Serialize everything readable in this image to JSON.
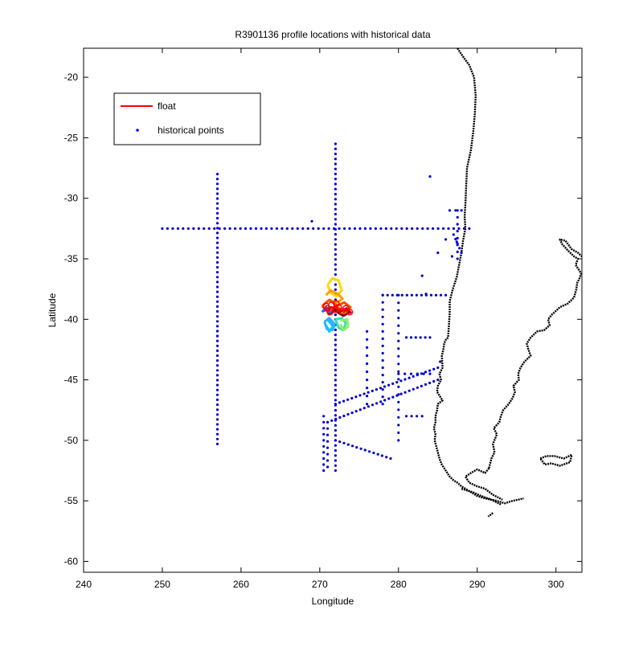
{
  "chart_data": {
    "type": "scatter",
    "title": "R3901136 profile locations with historical data",
    "xlabel": "Longitude",
    "ylabel": "Latitude",
    "xlim": [
      240,
      303.3
    ],
    "ylim": [
      -60.9,
      -17.6
    ],
    "xticks": [
      240,
      250,
      260,
      270,
      280,
      290,
      300
    ],
    "yticks": [
      -20,
      -25,
      -30,
      -35,
      -40,
      -45,
      -50,
      -55,
      -60
    ],
    "legend": {
      "placement": "top-left",
      "entries": [
        {
          "label": "float",
          "color": "#ff0000",
          "marker": "line"
        },
        {
          "label": "historical points",
          "color": "#0000ff",
          "marker": "point"
        }
      ]
    },
    "series": [
      {
        "name": "historical points",
        "color": "#0000cc",
        "segments": [
          {
            "from": [
              250,
              -32.5
            ],
            "to": [
              289,
              -32.5
            ],
            "n": 60
          },
          {
            "from": [
              257,
              -28
            ],
            "to": [
              257,
              -50.3
            ],
            "n": 56
          },
          {
            "from": [
              272,
              -25.5
            ],
            "to": [
              272,
              -52.5
            ],
            "n": 66
          },
          {
            "from": [
              278,
              -38
            ],
            "to": [
              286,
              -38
            ],
            "n": 14
          },
          {
            "from": [
              278,
              -38
            ],
            "to": [
              278,
              -47
            ],
            "n": 16
          },
          {
            "from": [
              276,
              -41
            ],
            "to": [
              276,
              -47
            ],
            "n": 10
          },
          {
            "from": [
              280,
              -38
            ],
            "to": [
              280,
              -50
            ],
            "n": 20
          },
          {
            "from": [
              281,
              -41.5
            ],
            "to": [
              284,
              -41.5
            ],
            "n": 6
          },
          {
            "from": [
              280,
              -44.5
            ],
            "to": [
              284,
              -44.5
            ],
            "n": 6
          },
          {
            "from": [
              281,
              -48
            ],
            "to": [
              283,
              -48
            ],
            "n": 4
          },
          {
            "from": [
              270.5,
              -48
            ],
            "to": [
              270.5,
              -52.5
            ],
            "n": 10
          },
          {
            "from": [
              271,
              -48.5
            ],
            "to": [
              271,
              -52.2
            ],
            "n": 8
          },
          {
            "from": [
              271,
              -48.5
            ],
            "to": [
              285,
              -45
            ],
            "n": 28
          },
          {
            "from": [
              272,
              -47
            ],
            "to": [
              285,
              -44
            ],
            "n": 26
          },
          {
            "from": [
              272,
              -50
            ],
            "to": [
              279,
              -51.5
            ],
            "n": 14
          },
          {
            "from": [
              287.5,
              -31
            ],
            "to": [
              287.5,
              -35
            ],
            "n": 8
          },
          {
            "from": [
              286.5,
              -31
            ],
            "to": [
              288,
              -31
            ],
            "n": 3
          },
          {
            "from": [
              287,
              -33
            ],
            "to": [
              288,
              -34.5
            ],
            "n": 5
          }
        ],
        "points": [
          [
            269,
            -31.9
          ],
          [
            284,
            -28.2
          ],
          [
            283,
            -36.4
          ],
          [
            285,
            -34.5
          ],
          [
            283.5,
            -37.9
          ],
          [
            286,
            -33.4
          ],
          [
            287.4,
            -33.6
          ],
          [
            286.8,
            -34.8
          ],
          [
            285.3,
            -43.5
          ]
        ]
      },
      {
        "name": "float",
        "color": "#ff0000",
        "points": [
          [
            271,
            -39.1
          ],
          [
            271.5,
            -38.8
          ],
          [
            272,
            -39.2
          ],
          [
            272.4,
            -39.0
          ],
          [
            272.8,
            -39.3
          ],
          [
            273.3,
            -39.1
          ],
          [
            273.8,
            -39.4
          ],
          [
            271.3,
            -39.4
          ],
          [
            270.8,
            -38.9
          ],
          [
            272.1,
            -38.7
          ]
        ],
        "traces": [
          {
            "color": "#ffd800",
            "points": [
              [
                271,
                -37.2
              ],
              [
                271.6,
                -36.6
              ],
              [
                272.4,
                -36.8
              ],
              [
                272.8,
                -37.6
              ],
              [
                272.1,
                -38.1
              ],
              [
                271.4,
                -37.8
              ],
              [
                271,
                -37.2
              ]
            ]
          },
          {
            "color": "#ffa000",
            "points": [
              [
                270.8,
                -38
              ],
              [
                271.4,
                -37.6
              ],
              [
                272.3,
                -37.9
              ],
              [
                272.9,
                -38.3
              ],
              [
                272.2,
                -38.6
              ],
              [
                271.2,
                -38.4
              ]
            ]
          },
          {
            "color": "#ff5000",
            "points": [
              [
                270.3,
                -38.9
              ],
              [
                271.2,
                -38.4
              ],
              [
                272.2,
                -38.9
              ],
              [
                273.1,
                -38.6
              ],
              [
                273.9,
                -39.0
              ],
              [
                273.1,
                -39.4
              ],
              [
                272.2,
                -39.0
              ],
              [
                271.2,
                -39.5
              ],
              [
                270.3,
                -38.9
              ]
            ]
          },
          {
            "color": "#cc0000",
            "points": [
              [
                270.5,
                -39.3
              ],
              [
                271.5,
                -39.0
              ],
              [
                272.5,
                -39.4
              ],
              [
                273.4,
                -39.1
              ],
              [
                274.0,
                -39.5
              ]
            ]
          },
          {
            "color": "#8b0000",
            "points": [
              [
                271.0,
                -39.6
              ],
              [
                272.0,
                -39.3
              ],
              [
                273.0,
                -39.7
              ],
              [
                273.8,
                -39.4
              ]
            ]
          },
          {
            "color": "#38a8ff",
            "points": [
              [
                270.6,
                -40.2
              ],
              [
                271.2,
                -39.9
              ],
              [
                271.9,
                -40.4
              ],
              [
                271.6,
                -40.9
              ],
              [
                270.9,
                -40.8
              ],
              [
                270.6,
                -40.2
              ]
            ]
          },
          {
            "color": "#00c8ff",
            "points": [
              [
                271.0,
                -40.0
              ],
              [
                271.7,
                -40.6
              ],
              [
                271.2,
                -41.0
              ],
              [
                270.8,
                -40.5
              ]
            ]
          },
          {
            "color": "#30e0c0",
            "points": [
              [
                272.0,
                -40.0
              ],
              [
                272.4,
                -40.7
              ],
              [
                273.0,
                -40.9
              ],
              [
                273.3,
                -40.3
              ],
              [
                272.8,
                -39.9
              ],
              [
                272.0,
                -40.0
              ]
            ]
          },
          {
            "color": "#90f060",
            "points": [
              [
                272.6,
                -40.1
              ],
              [
                273.5,
                -40.0
              ],
              [
                273.6,
                -40.6
              ],
              [
                273.0,
                -40.9
              ],
              [
                272.6,
                -40.4
              ]
            ]
          },
          {
            "color": "#3060ff",
            "points": [
              [
                270.3,
                -39.4
              ],
              [
                270.8,
                -39.0
              ],
              [
                271.4,
                -39.5
              ]
            ]
          }
        ]
      },
      {
        "name": "coastline",
        "color": "#000000",
        "lines": [
          [
            [
              287.5,
              -17.6
            ],
            [
              288.2,
              -18.3
            ],
            [
              289.0,
              -19.0
            ],
            [
              289.6,
              -20.0
            ],
            [
              289.8,
              -21.5
            ],
            [
              289.7,
              -23.0
            ],
            [
              289.5,
              -24.5
            ],
            [
              289.2,
              -26.0
            ],
            [
              288.7,
              -27.5
            ],
            [
              288.6,
              -29.0
            ],
            [
              288.5,
              -30.5
            ],
            [
              288.4,
              -31.5
            ],
            [
              288.5,
              -32.5
            ],
            [
              288.2,
              -33.5
            ],
            [
              288.0,
              -34.5
            ],
            [
              287.7,
              -35.5
            ],
            [
              287.4,
              -36.5
            ],
            [
              286.9,
              -37.5
            ],
            [
              286.5,
              -38.5
            ],
            [
              286.5,
              -39.5
            ],
            [
              286.4,
              -40.5
            ],
            [
              286.3,
              -41.5
            ],
            [
              286.0,
              -41.7
            ],
            [
              285.8,
              -42.0
            ],
            [
              285.7,
              -42.5
            ],
            [
              285.5,
              -43.0
            ],
            [
              285.6,
              -44.0
            ],
            [
              285.2,
              -44.5
            ],
            [
              285.4,
              -45.0
            ],
            [
              285.0,
              -45.5
            ],
            [
              284.9,
              -46.0
            ],
            [
              285.6,
              -46.7
            ],
            [
              285.0,
              -47.0
            ],
            [
              284.9,
              -47.5
            ],
            [
              284.7,
              -48.0
            ],
            [
              284.7,
              -48.5
            ],
            [
              284.5,
              -49.0
            ],
            [
              284.7,
              -49.5
            ],
            [
              284.6,
              -50.0
            ],
            [
              284.8,
              -50.5
            ],
            [
              285.0,
              -51.0
            ],
            [
              285.2,
              -51.5
            ],
            [
              285.5,
              -52.0
            ],
            [
              286.0,
              -52.5
            ],
            [
              286.5,
              -53.0
            ],
            [
              287.0,
              -53.3
            ],
            [
              287.5,
              -53.5
            ],
            [
              288.0,
              -53.8
            ],
            [
              289.0,
              -54.2
            ],
            [
              290.0,
              -54.6
            ],
            [
              291.0,
              -54.8
            ],
            [
              292.5,
              -55.0
            ],
            [
              293.5,
              -55.2
            ],
            [
              294.5,
              -55.0
            ],
            [
              295.2,
              -54.9
            ],
            [
              295.9,
              -54.8
            ]
          ],
          [
            [
              292.0,
              -56.0
            ],
            [
              291.4,
              -56.3
            ]
          ],
          [
            [
              291.5,
              -52.3
            ],
            [
              291.8,
              -51.5
            ],
            [
              292.2,
              -51.0
            ],
            [
              292.0,
              -50.3
            ],
            [
              292.5,
              -49.5
            ],
            [
              292.1,
              -49.0
            ],
            [
              292.8,
              -48.5
            ],
            [
              293.0,
              -48.0
            ],
            [
              293.3,
              -47.5
            ],
            [
              294.0,
              -47.0
            ],
            [
              294.5,
              -46.5
            ],
            [
              294.8,
              -46.0
            ],
            [
              294.6,
              -45.5
            ],
            [
              295.3,
              -45.0
            ],
            [
              295.2,
              -44.5
            ],
            [
              295.5,
              -44.0
            ],
            [
              296.0,
              -43.5
            ],
            [
              296.8,
              -43.0
            ],
            [
              296.5,
              -42.5
            ],
            [
              296.3,
              -42.0
            ],
            [
              296.8,
              -41.5
            ],
            [
              297.6,
              -41.0
            ],
            [
              298.5,
              -40.9
            ],
            [
              299.2,
              -40.5
            ],
            [
              299.0,
              -40.0
            ],
            [
              299.5,
              -39.6
            ],
            [
              300.5,
              -39.0
            ],
            [
              301.5,
              -38.7
            ],
            [
              302.3,
              -38.2
            ],
            [
              302.6,
              -37.5
            ],
            [
              302.7,
              -37.0
            ],
            [
              303.0,
              -36.6
            ],
            [
              303.2,
              -36.2
            ],
            [
              302.5,
              -35.5
            ],
            [
              302.8,
              -35.0
            ],
            [
              302.3,
              -34.8
            ],
            [
              301.5,
              -34.3
            ],
            [
              300.8,
              -33.8
            ],
            [
              300.5,
              -33.4
            ],
            [
              301.2,
              -33.5
            ],
            [
              302.0,
              -34.2
            ],
            [
              302.8,
              -34.5
            ],
            [
              303.3,
              -34.8
            ]
          ],
          [
            [
              291.5,
              -52.3
            ],
            [
              291.0,
              -52.7
            ],
            [
              290.0,
              -52.4
            ],
            [
              289.2,
              -52.7
            ],
            [
              288.5,
              -53.0
            ],
            [
              289.0,
              -53.5
            ],
            [
              290.0,
              -53.8
            ],
            [
              291.0,
              -54.0
            ],
            [
              292.0,
              -54.5
            ],
            [
              293.2,
              -54.9
            ]
          ],
          [
            [
              298.0,
              -51.5
            ],
            [
              298.8,
              -51.3
            ],
            [
              299.8,
              -51.3
            ],
            [
              301.0,
              -51.5
            ],
            [
              302.0,
              -51.2
            ],
            [
              301.8,
              -51.8
            ],
            [
              300.5,
              -52.1
            ],
            [
              299.4,
              -51.9
            ],
            [
              298.6,
              -52.0
            ],
            [
              298.0,
              -51.5
            ]
          ],
          [
            [
              288.0,
              -54.0
            ],
            [
              289.5,
              -54.3
            ],
            [
              290.5,
              -54.6
            ],
            [
              291.8,
              -54.9
            ],
            [
              293.0,
              -55.3
            ]
          ]
        ]
      }
    ]
  }
}
